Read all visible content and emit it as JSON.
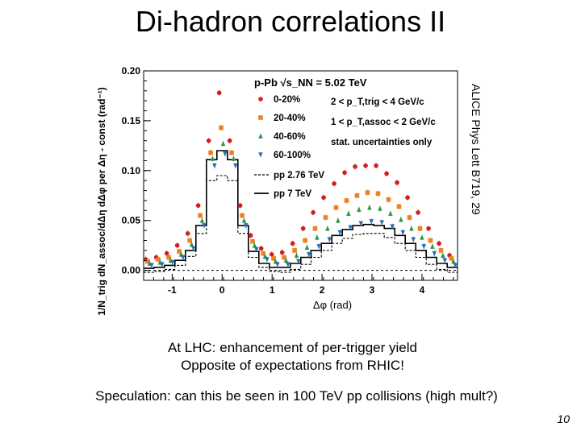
{
  "slide": {
    "title": "Di-hadron correlations II",
    "reference": "ALICE Phys Lett B719, 29",
    "comment_line1": "At LHC: enhancement of per-trigger yield",
    "comment_line2": "Opposite of expectations from RHIC!",
    "speculation": "Speculation: can this be seen in 100 TeV pp collisions (high mult?)",
    "page_number": "10"
  },
  "chart_data": {
    "type": "scatter",
    "xlabel": "Δφ (rad)",
    "ylabel": "1/N_trig dN_assoc/dΔη dΔφ per Δη - const (rad⁻¹)",
    "xlim": [
      -1.571,
      4.712
    ],
    "ylim": [
      -0.01,
      0.2
    ],
    "x_ticks": [
      -1,
      0,
      1,
      2,
      3,
      4
    ],
    "y_ticks": [
      0.0,
      0.05,
      0.1,
      0.15,
      0.2
    ],
    "y_tick_labels": [
      "0.00",
      "0.05",
      "0.10",
      "0.15",
      "0.20"
    ],
    "legend": {
      "system": "p-Pb √s_NN = 5.02 TeV",
      "cut_trig": "2 < p_T,trig < 4 GeV/c",
      "cut_assoc": "1 < p_T,assoc < 2 GeV/c",
      "note": "stat. uncertainties only"
    },
    "x": [
      -1.47,
      -1.26,
      -1.05,
      -0.84,
      -0.63,
      -0.42,
      -0.21,
      0.0,
      0.21,
      0.42,
      0.63,
      0.84,
      1.05,
      1.26,
      1.47,
      1.68,
      1.88,
      2.09,
      2.3,
      2.51,
      2.72,
      2.93,
      3.14,
      3.35,
      3.56,
      3.77,
      3.98,
      4.19,
      4.4,
      4.61
    ],
    "series": [
      {
        "name": "0-20%",
        "color": "#d11f1f",
        "marker": "circle",
        "values": [
          0.011,
          0.013,
          0.017,
          0.025,
          0.037,
          0.065,
          0.13,
          0.178,
          0.13,
          0.065,
          0.035,
          0.022,
          0.016,
          0.018,
          0.027,
          0.042,
          0.058,
          0.073,
          0.087,
          0.098,
          0.104,
          0.105,
          0.105,
          0.097,
          0.088,
          0.073,
          0.058,
          0.042,
          0.027,
          0.015
        ]
      },
      {
        "name": "20-40%",
        "color": "#f08020",
        "marker": "square",
        "values": [
          0.009,
          0.011,
          0.013,
          0.019,
          0.03,
          0.055,
          0.118,
          0.143,
          0.118,
          0.055,
          0.029,
          0.017,
          0.012,
          0.013,
          0.02,
          0.03,
          0.042,
          0.053,
          0.063,
          0.07,
          0.075,
          0.078,
          0.077,
          0.071,
          0.064,
          0.053,
          0.042,
          0.03,
          0.02,
          0.012
        ]
      },
      {
        "name": "40-60%",
        "color": "#2a9a45",
        "marker": "triangle-up",
        "values": [
          0.007,
          0.008,
          0.01,
          0.016,
          0.026,
          0.05,
          0.112,
          0.127,
          0.112,
          0.05,
          0.025,
          0.014,
          0.009,
          0.01,
          0.015,
          0.023,
          0.033,
          0.042,
          0.05,
          0.057,
          0.061,
          0.063,
          0.062,
          0.057,
          0.051,
          0.042,
          0.033,
          0.024,
          0.015,
          0.009
        ]
      },
      {
        "name": "60-100%",
        "color": "#2f6db5",
        "marker": "triangle-down",
        "values": [
          0.005,
          0.006,
          0.008,
          0.013,
          0.022,
          0.045,
          0.105,
          0.117,
          0.105,
          0.045,
          0.021,
          0.011,
          0.006,
          0.006,
          0.009,
          0.016,
          0.024,
          0.031,
          0.038,
          0.043,
          0.047,
          0.049,
          0.048,
          0.044,
          0.038,
          0.031,
          0.024,
          0.017,
          0.01,
          0.005
        ]
      },
      {
        "name": "pp 2.76 TeV",
        "color": "#000000",
        "style": "dashed-histogram",
        "values": [
          -0.002,
          -0.001,
          0.001,
          0.005,
          0.014,
          0.037,
          0.09,
          0.095,
          0.09,
          0.037,
          0.013,
          0.003,
          -0.001,
          -0.002,
          0.001,
          0.006,
          0.013,
          0.02,
          0.027,
          0.032,
          0.036,
          0.037,
          0.037,
          0.033,
          0.027,
          0.02,
          0.013,
          0.006,
          0.001,
          -0.002
        ]
      },
      {
        "name": "pp 7 TeV",
        "color": "#000000",
        "style": "solid-histogram",
        "values": [
          0.002,
          0.003,
          0.005,
          0.01,
          0.02,
          0.045,
          0.111,
          0.12,
          0.111,
          0.045,
          0.019,
          0.007,
          0.003,
          0.003,
          0.007,
          0.013,
          0.02,
          0.027,
          0.035,
          0.041,
          0.045,
          0.046,
          0.045,
          0.042,
          0.035,
          0.027,
          0.02,
          0.013,
          0.007,
          0.003
        ]
      }
    ]
  }
}
